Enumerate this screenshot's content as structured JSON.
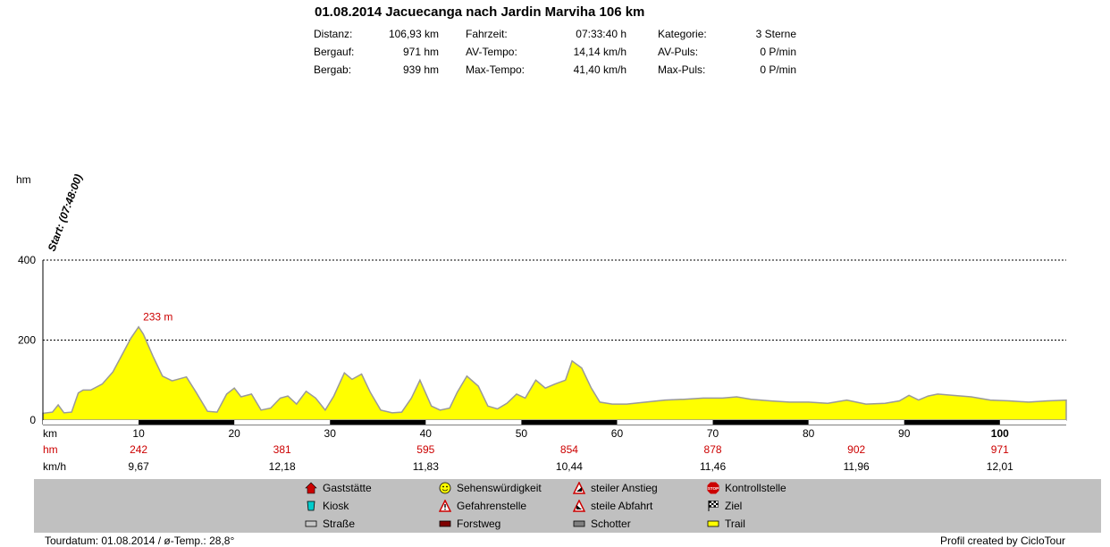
{
  "header": {
    "title": "01.08.2014 Jacuecanga nach Jardin Marviha 106 km",
    "stats": [
      {
        "label": "Distanz:",
        "value": "106,93 km"
      },
      {
        "label": "Bergauf:",
        "value": "971 hm"
      },
      {
        "label": "Bergab:",
        "value": "939 hm"
      },
      {
        "label": "Fahrzeit:",
        "value": "07:33:40 h"
      },
      {
        "label": "AV-Tempo:",
        "value": "14,14 km/h"
      },
      {
        "label": "Max-Tempo:",
        "value": "41,40 km/h"
      },
      {
        "label": "Kategorie:",
        "value": "3 Sterne"
      },
      {
        "label": "AV-Puls:",
        "value": "0 P/min"
      },
      {
        "label": "Max-Puls:",
        "value": "0 P/min"
      }
    ]
  },
  "chart_data": {
    "type": "area",
    "ylabel": "hm",
    "xlabel": "km",
    "ylim": [
      0,
      400
    ],
    "xlim": [
      0,
      106.93
    ],
    "yticks": [
      0,
      200,
      400
    ],
    "xticks": [
      10,
      20,
      30,
      40,
      50,
      60,
      70,
      80,
      90,
      100
    ],
    "grid": "dotted horizontal at 200 and 400",
    "fill_color": "#ffff00",
    "line_color": "#999999",
    "start_label": "Start: (07:48:00)",
    "peak_label": "233 m",
    "peak": {
      "x": 10,
      "y": 233
    },
    "x": [
      0,
      1,
      1.6,
      2.2,
      3,
      3.7,
      4.2,
      5,
      6.2,
      7.3,
      8.2,
      9.2,
      10,
      10.5,
      11.5,
      12.5,
      13.5,
      15,
      16,
      17.2,
      18.2,
      19.2,
      20,
      20.7,
      21.8,
      22.8,
      23.8,
      24.8,
      25.6,
      26.5,
      27.5,
      28.5,
      29.5,
      30.4,
      31.5,
      32.3,
      33.3,
      34.2,
      35.3,
      36.5,
      37.5,
      38.5,
      39.4,
      40.6,
      41.5,
      42.5,
      43.3,
      44.3,
      45.5,
      46.5,
      47.5,
      48.5,
      49.5,
      50.4,
      51.5,
      52.5,
      53.5,
      54.6,
      55.3,
      56.3,
      57.3,
      58.2,
      59.5,
      61,
      63,
      65,
      67,
      69,
      71,
      72.5,
      74,
      76,
      78,
      80,
      82,
      84,
      86,
      88,
      89.5,
      90.5,
      91.5,
      92.5,
      93.5,
      95,
      97,
      99,
      101,
      103,
      105,
      106.93
    ],
    "y": [
      17,
      20,
      38,
      18,
      20,
      68,
      75,
      75,
      90,
      120,
      160,
      205,
      233,
      215,
      160,
      110,
      98,
      108,
      70,
      22,
      20,
      65,
      80,
      58,
      65,
      25,
      30,
      55,
      60,
      40,
      72,
      55,
      25,
      60,
      118,
      102,
      115,
      70,
      25,
      18,
      20,
      55,
      100,
      35,
      25,
      30,
      70,
      110,
      85,
      35,
      28,
      42,
      65,
      55,
      100,
      80,
      90,
      100,
      148,
      130,
      80,
      45,
      40,
      40,
      45,
      50,
      52,
      55,
      55,
      58,
      52,
      48,
      45,
      45,
      42,
      50,
      40,
      42,
      48,
      62,
      50,
      60,
      65,
      62,
      58,
      50,
      48,
      45,
      48,
      50
    ],
    "surface_bar": [
      {
        "from": 10,
        "to": 20
      },
      {
        "from": 30,
        "to": 40
      },
      {
        "from": 50,
        "to": 60
      },
      {
        "from": 70,
        "to": 80
      },
      {
        "from": 90,
        "to": 100
      }
    ],
    "summary_rows": [
      {
        "label": "hm",
        "values": [
          "242",
          "381",
          "595",
          "854",
          "878",
          "902",
          "971"
        ],
        "at": [
          10,
          25,
          40,
          55,
          70,
          85,
          100
        ]
      },
      {
        "label": "km/h",
        "values": [
          "9,67",
          "12,18",
          "11,83",
          "10,44",
          "11,46",
          "11,96",
          "12,01"
        ],
        "at": [
          10,
          25,
          40,
          55,
          70,
          85,
          100
        ]
      }
    ]
  },
  "legend": [
    {
      "icon": "house-icon",
      "label": "Gaststätte"
    },
    {
      "icon": "cup-icon",
      "label": "Kiosk"
    },
    {
      "icon": "street-icon",
      "label": "Straße"
    },
    {
      "icon": "smiley-icon",
      "label": "Sehenswürdigkeit"
    },
    {
      "icon": "danger-icon",
      "label": "Gefahrenstelle"
    },
    {
      "icon": "forest-path-icon",
      "label": "Forstweg"
    },
    {
      "icon": "steep-climb-icon",
      "label": "steiler Anstieg"
    },
    {
      "icon": "steep-descent-icon",
      "label": "steile Abfahrt"
    },
    {
      "icon": "gravel-icon",
      "label": "Schotter"
    },
    {
      "icon": "stop-icon",
      "label": "Kontrollstelle"
    },
    {
      "icon": "finish-flag-icon",
      "label": "Ziel"
    },
    {
      "icon": "trail-icon",
      "label": "Trail"
    }
  ],
  "footer": {
    "left": "Tourdatum: 01.08.2014  /  ø-Temp.: 28,8°",
    "right": "Profil created by CicloTour"
  }
}
